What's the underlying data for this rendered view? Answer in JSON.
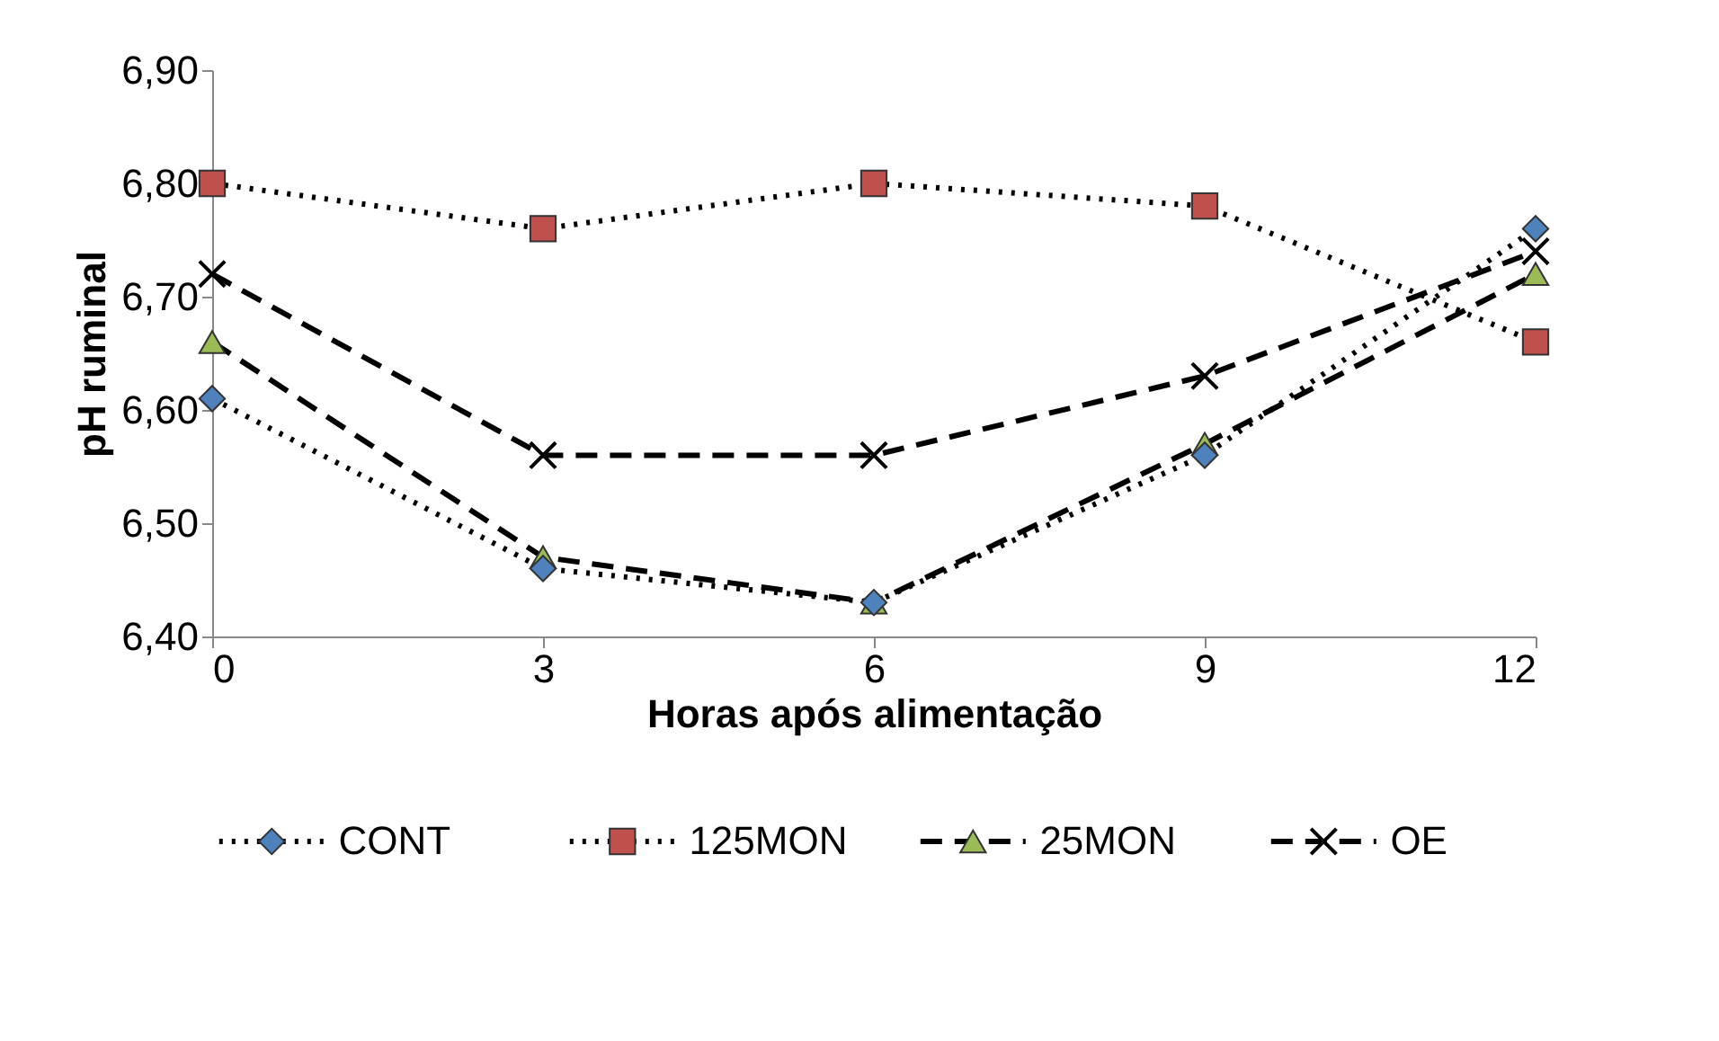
{
  "chart_data": {
    "type": "line",
    "xlabel": "Horas após alimentação",
    "ylabel": "pH ruminal",
    "x": [
      0,
      3,
      6,
      9,
      12
    ],
    "series": [
      {
        "name": "CONT",
        "color": "#4f81bd",
        "marker": "diamond",
        "line_style": "dotted",
        "values": [
          6.61,
          6.46,
          6.43,
          6.56,
          6.76
        ]
      },
      {
        "name": "125MON",
        "color": "#c0504d",
        "marker": "square",
        "line_style": "dotted",
        "values": [
          6.8,
          6.76,
          6.8,
          6.78,
          6.66
        ]
      },
      {
        "name": "25MON",
        "color": "#9bbb59",
        "marker": "triangle",
        "line_style": "dashed",
        "values": [
          6.66,
          6.47,
          6.43,
          6.57,
          6.72
        ]
      },
      {
        "name": "OE",
        "color": "#000000",
        "marker": "cross",
        "line_style": "dashed",
        "values": [
          6.72,
          6.56,
          6.56,
          6.63,
          6.74
        ]
      }
    ],
    "xlim": [
      0,
      12
    ],
    "xticks": [
      0,
      3,
      6,
      9,
      12
    ],
    "ylim": [
      6.4,
      6.9
    ],
    "yticks": [
      {
        "value": 6.4,
        "label": "6,40"
      },
      {
        "value": 6.5,
        "label": "6,50"
      },
      {
        "value": 6.6,
        "label": "6,60"
      },
      {
        "value": 6.7,
        "label": "6,70"
      },
      {
        "value": 6.8,
        "label": "6,80"
      },
      {
        "value": 6.9,
        "label": "6,90"
      }
    ],
    "grid": false,
    "legend": "bottom"
  }
}
